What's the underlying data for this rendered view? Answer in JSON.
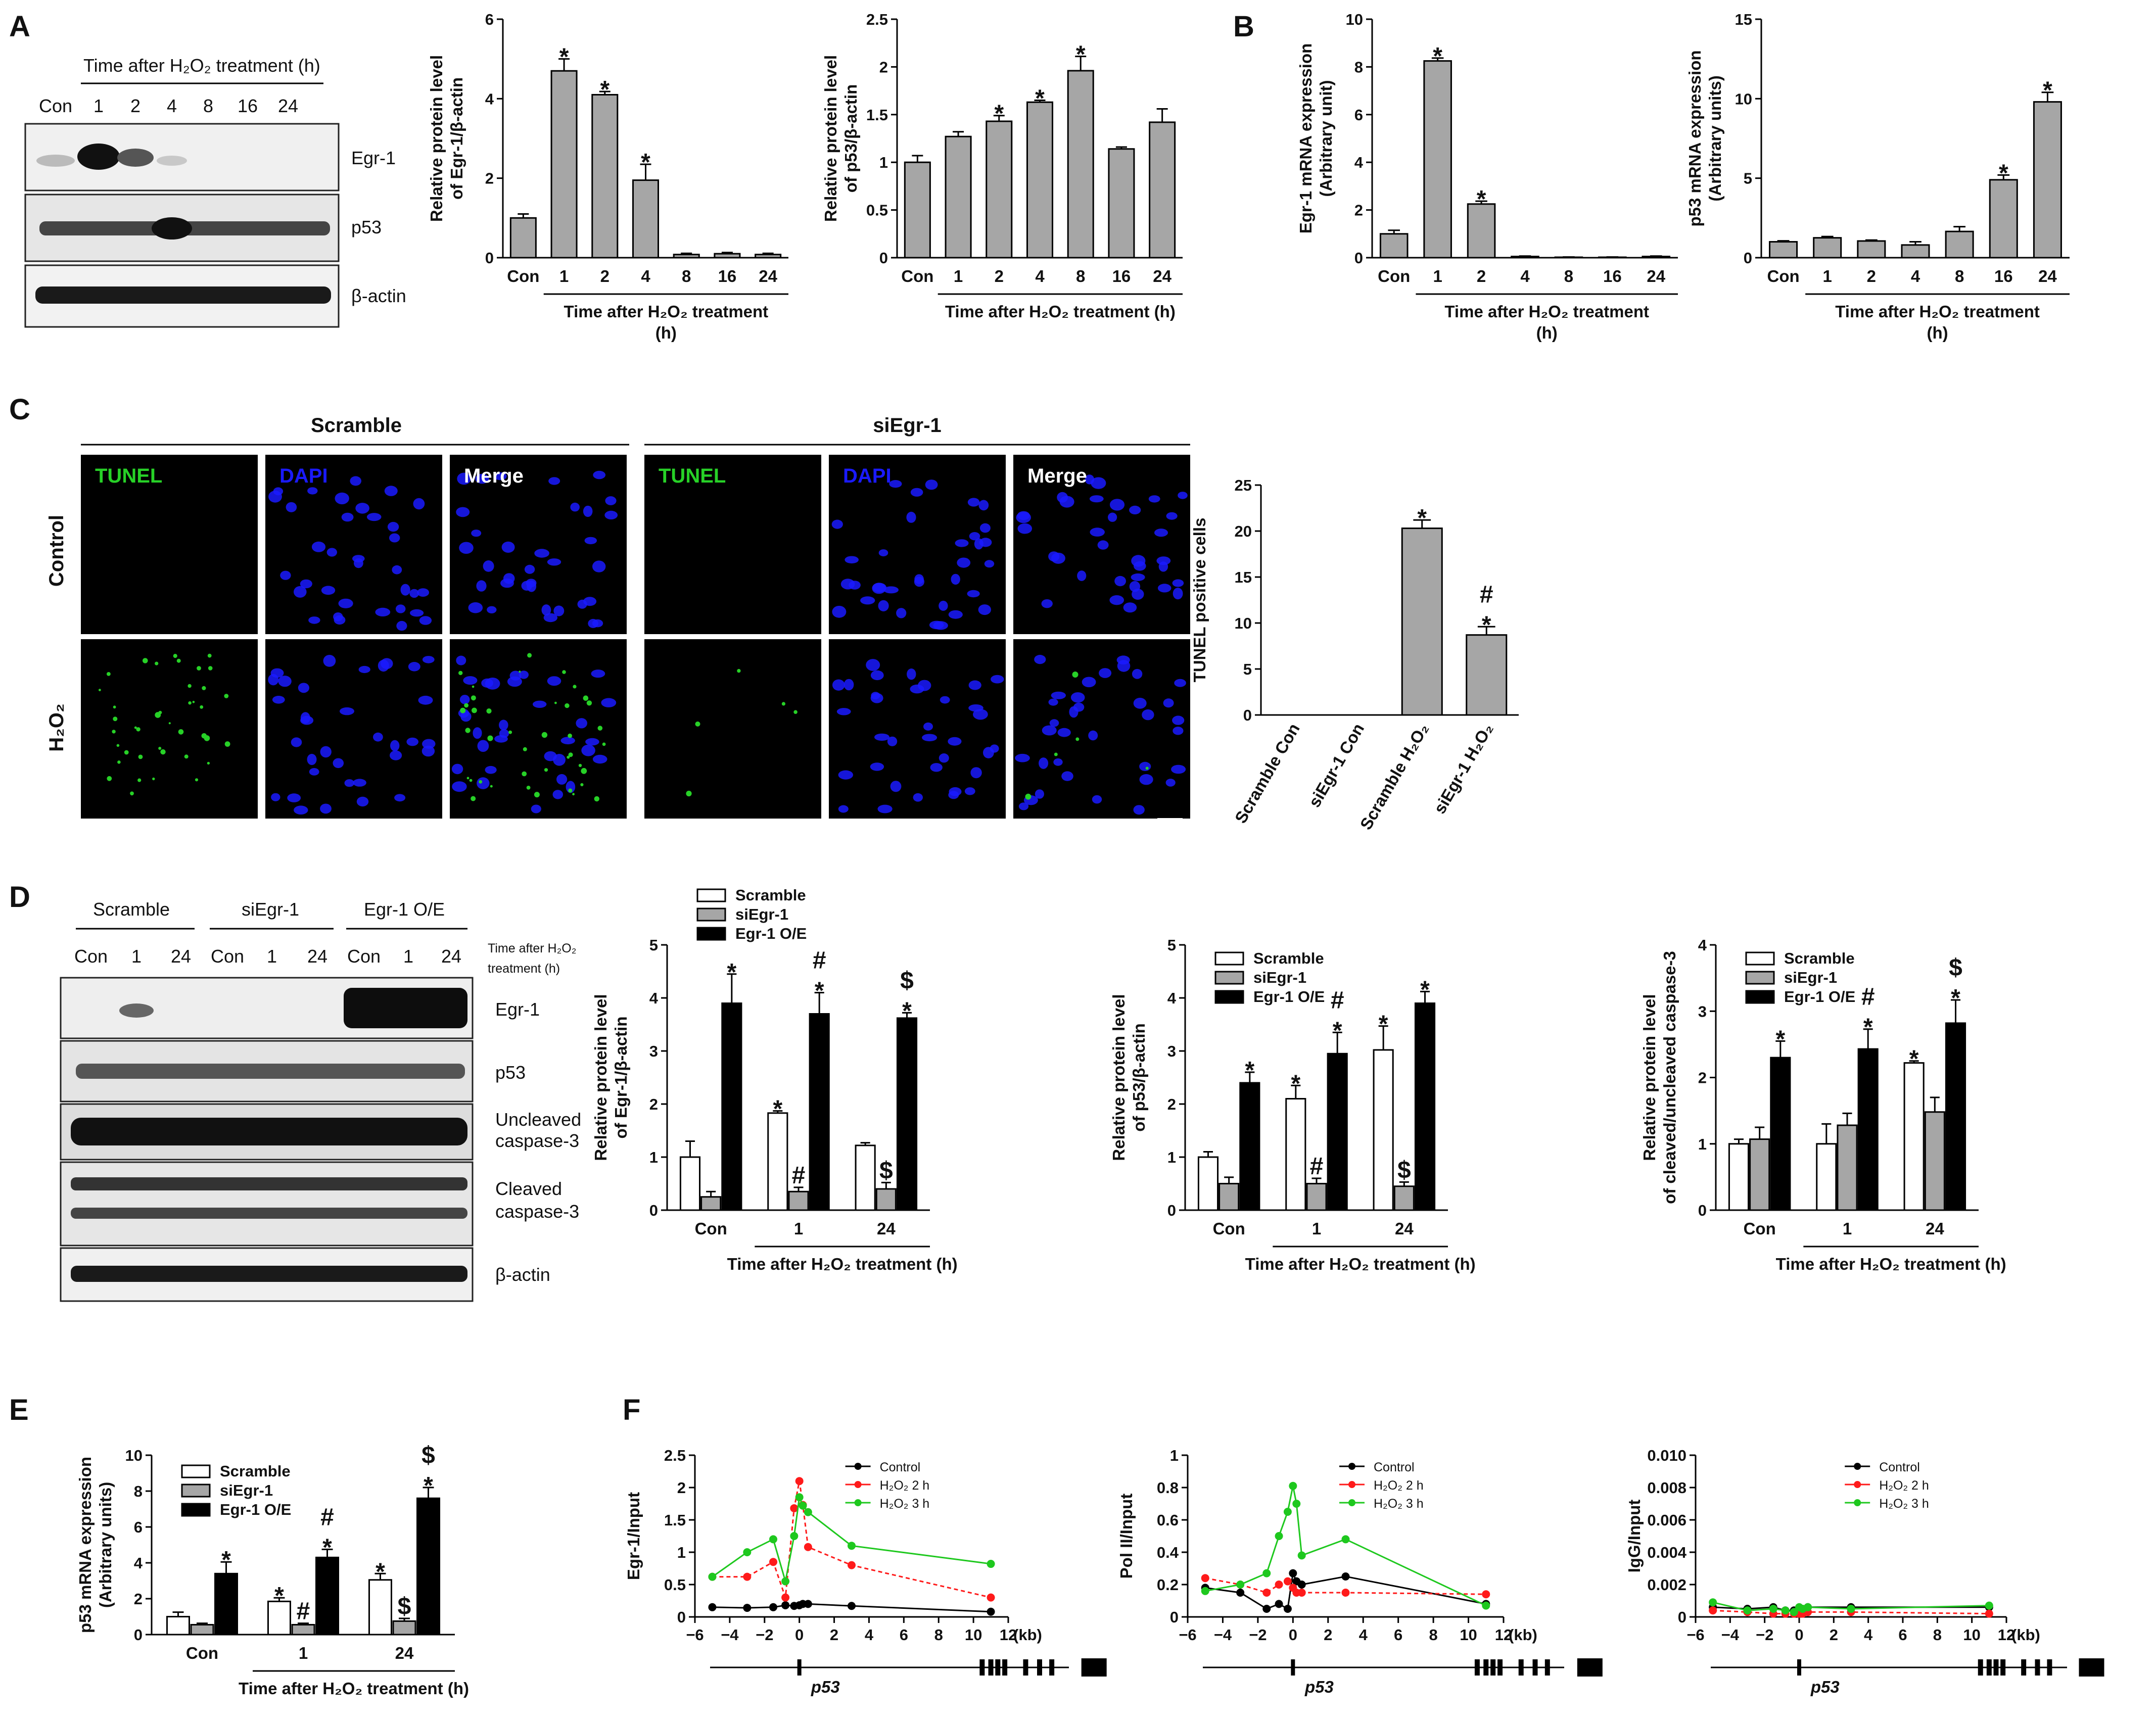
{
  "panels": {
    "A": "A",
    "B": "B",
    "C": "C",
    "D": "D",
    "E": "E",
    "F": "F"
  },
  "colors": {
    "gray_bar": "#a6a6a6",
    "black_bar": "#000000",
    "white_bar": "#ffffff",
    "control": "#000000",
    "h2o2_2h": "#ff1a1a",
    "h2o2_3h": "#1ec81e",
    "tunel": "#27d127",
    "dapi": "#1a1aff"
  },
  "blot_a": {
    "header": "Time after H₂O₂ treatment (h)",
    "lanes": [
      "Con",
      "1",
      "2",
      "4",
      "8",
      "16",
      "24"
    ],
    "bands": [
      "Egr-1",
      "p53",
      "β-actin"
    ]
  },
  "blot_d": {
    "groups": [
      "Scramble",
      "siEgr-1",
      "Egr-1 O/E"
    ],
    "lanes": [
      "Con",
      "1",
      "24",
      "Con",
      "1",
      "24",
      "Con",
      "1",
      "24"
    ],
    "time_label_1": "Time after H₂O₂",
    "time_label_2": "treatment (h)",
    "bands": [
      "Egr-1",
      "p53",
      "Uncleaved",
      "caspase-3",
      "Cleaved",
      "caspase-3",
      "β-actin"
    ]
  },
  "microscopy": {
    "headers": [
      "Scramble",
      "siEgr-1"
    ],
    "rows": [
      "Control",
      "H₂O₂"
    ],
    "channels": [
      "TUNEL",
      "DAPI",
      "Merge",
      "TUNEL",
      "DAPI",
      "Merge"
    ]
  },
  "chart_data": [
    {
      "id": "A1",
      "type": "bar",
      "categories": [
        "Con",
        "1",
        "2",
        "4",
        "8",
        "16",
        "24"
      ],
      "values": [
        1.0,
        4.7,
        4.1,
        1.95,
        0.08,
        0.1,
        0.08
      ],
      "errors": [
        0.1,
        0.3,
        0.08,
        0.4,
        0.03,
        0.03,
        0.03
      ],
      "marks": [
        "",
        "*",
        "*",
        "*",
        "",
        "",
        ""
      ],
      "ylim": [
        0,
        6
      ],
      "yticks": [
        0,
        2,
        4,
        6
      ],
      "ylabel": [
        "Relative protein level",
        "of Egr-1/β-actin"
      ],
      "xlabel": [
        "Time after H₂O₂ treatment",
        "(h)"
      ],
      "bar_color": "#a6a6a6"
    },
    {
      "id": "A2",
      "type": "bar",
      "categories": [
        "Con",
        "1",
        "2",
        "4",
        "8",
        "16",
        "24"
      ],
      "values": [
        1.0,
        1.27,
        1.43,
        1.63,
        1.96,
        1.14,
        1.42
      ],
      "errors": [
        0.07,
        0.05,
        0.06,
        0.02,
        0.15,
        0.02,
        0.14
      ],
      "marks": [
        "",
        "",
        "*",
        "*",
        "*",
        "",
        ""
      ],
      "ylim": [
        0,
        2.5
      ],
      "yticks": [
        0,
        0.5,
        1.0,
        1.5,
        2.0,
        2.5
      ],
      "ylabel": [
        "Relative protein level",
        "of p53/β-actin"
      ],
      "xlabel": [
        "Time after H₂O₂ treatment (h)"
      ],
      "bar_color": "#a6a6a6"
    },
    {
      "id": "B1",
      "type": "bar",
      "categories": [
        "Con",
        "1",
        "2",
        "4",
        "8",
        "16",
        "24"
      ],
      "values": [
        1.0,
        8.25,
        2.25,
        0.05,
        0.02,
        0.02,
        0.05
      ],
      "errors": [
        0.15,
        0.12,
        0.12,
        0.02,
        0.01,
        0.01,
        0.02
      ],
      "marks": [
        "",
        "*",
        "*",
        "",
        "",
        "",
        ""
      ],
      "ylim": [
        0,
        10
      ],
      "yticks": [
        0,
        2,
        4,
        6,
        8,
        10
      ],
      "ylabel": [
        "Egr-1 mRNA expression",
        "(Arbitrary unit)"
      ],
      "xlabel": [
        "Time after H₂O₂ treatment",
        "(h)"
      ],
      "bar_color": "#a6a6a6"
    },
    {
      "id": "B2",
      "type": "bar",
      "categories": [
        "Con",
        "1",
        "2",
        "4",
        "8",
        "16",
        "24"
      ],
      "values": [
        1.0,
        1.25,
        1.05,
        0.8,
        1.65,
        4.9,
        9.8
      ],
      "errors": [
        0.06,
        0.08,
        0.06,
        0.2,
        0.3,
        0.3,
        0.6
      ],
      "marks": [
        "",
        "",
        "",
        "",
        "",
        "*",
        "*"
      ],
      "ylim": [
        0,
        15
      ],
      "yticks": [
        0,
        5,
        10,
        15
      ],
      "ylabel": [
        "p53 mRNA expression",
        "(Arbitrary units)"
      ],
      "xlabel": [
        "Time after H₂O₂ treatment",
        "(h)"
      ],
      "bar_color": "#a6a6a6"
    },
    {
      "id": "C",
      "type": "bar",
      "categories": [
        "Scramble Con",
        "siEgr-1 Con",
        "Scramble H₂O₂",
        "siEgr-1 H₂O₂"
      ],
      "values": [
        0,
        0,
        20.3,
        8.7
      ],
      "errors": [
        0,
        0,
        0.9,
        0.9
      ],
      "marks": [
        "",
        "",
        "*",
        "#\n*"
      ],
      "ylim": [
        0,
        25
      ],
      "yticks": [
        0,
        5,
        10,
        15,
        20,
        25
      ],
      "ylabel": [
        "TUNEL positive cells"
      ],
      "xlabel": [],
      "bar_color": "#a6a6a6"
    },
    {
      "id": "D1",
      "type": "bar",
      "categories": [
        "Con",
        "1",
        "24"
      ],
      "legend": [
        "Scramble",
        "siEgr-1",
        "Egr-1 O/E"
      ],
      "series": [
        {
          "name": "Scramble",
          "values": [
            1.0,
            1.83,
            1.22
          ],
          "errors": [
            0.3,
            0.04,
            0.05
          ],
          "marks": [
            "",
            "*",
            ""
          ]
        },
        {
          "name": "siEgr-1",
          "values": [
            0.25,
            0.35,
            0.4
          ],
          "errors": [
            0.1,
            0.08,
            0.12
          ],
          "marks": [
            "",
            "#",
            "$"
          ]
        },
        {
          "name": "Egr-1 O/E",
          "values": [
            3.9,
            3.7,
            3.62
          ],
          "errors": [
            0.55,
            0.4,
            0.1
          ],
          "marks": [
            "*",
            "#\n*",
            "$\n*"
          ]
        }
      ],
      "ylim": [
        0,
        5
      ],
      "yticks": [
        0,
        1,
        2,
        3,
        4,
        5
      ],
      "ylabel": [
        "Relative protein level",
        "of Egr-1/β-actin"
      ],
      "xlabel": [
        "Time after H₂O₂ treatment (h)"
      ]
    },
    {
      "id": "D2",
      "type": "bar",
      "categories": [
        "Con",
        "1",
        "24"
      ],
      "legend": [
        "Scramble",
        "siEgr-1",
        "Egr-1 O/E"
      ],
      "series": [
        {
          "name": "Scramble",
          "values": [
            1.0,
            2.1,
            3.02
          ],
          "errors": [
            0.1,
            0.25,
            0.45
          ],
          "marks": [
            "",
            "*",
            "*"
          ]
        },
        {
          "name": "siEgr-1",
          "values": [
            0.5,
            0.5,
            0.45
          ],
          "errors": [
            0.12,
            0.1,
            0.08
          ],
          "marks": [
            "",
            "#",
            "$"
          ]
        },
        {
          "name": "Egr-1 O/E",
          "values": [
            2.4,
            2.95,
            3.9
          ],
          "errors": [
            0.2,
            0.4,
            0.22
          ],
          "marks": [
            "*",
            "#\n*",
            "*"
          ]
        }
      ],
      "ylim": [
        0,
        5
      ],
      "yticks": [
        0,
        1,
        2,
        3,
        4,
        5
      ],
      "ylabel": [
        "Relative protein level",
        "of p53/β-actin"
      ],
      "xlabel": [
        "Time after H₂O₂ treatment (h)"
      ]
    },
    {
      "id": "D3",
      "type": "bar",
      "categories": [
        "Con",
        "1",
        "24"
      ],
      "legend": [
        "Scramble",
        "siEgr-1",
        "Egr-1 O/E"
      ],
      "series": [
        {
          "name": "Scramble",
          "values": [
            1.0,
            1.0,
            2.22
          ],
          "errors": [
            0.07,
            0.3,
            0.03
          ],
          "marks": [
            "",
            "",
            "*"
          ]
        },
        {
          "name": "siEgr-1",
          "values": [
            1.07,
            1.28,
            1.48
          ],
          "errors": [
            0.18,
            0.18,
            0.22
          ],
          "marks": [
            "",
            "",
            ""
          ]
        },
        {
          "name": "Egr-1 O/E",
          "values": [
            2.3,
            2.43,
            2.82
          ],
          "errors": [
            0.25,
            0.3,
            0.35
          ],
          "marks": [
            "*",
            "#\n*",
            "$\n*"
          ]
        }
      ],
      "ylim": [
        0,
        4
      ],
      "yticks": [
        0,
        1,
        2,
        3,
        4
      ],
      "ylabel": [
        "Relative protein level",
        "of cleaved/uncleaved caspase-3"
      ],
      "xlabel": [
        "Time after H₂O₂ treatment (h)"
      ]
    },
    {
      "id": "E",
      "type": "bar",
      "categories": [
        "Con",
        "1",
        "24"
      ],
      "legend": [
        "Scramble",
        "siEgr-1",
        "Egr-1 O/E"
      ],
      "series": [
        {
          "name": "Scramble",
          "values": [
            1.0,
            1.85,
            3.05
          ],
          "errors": [
            0.25,
            0.2,
            0.35
          ],
          "marks": [
            "",
            "*",
            "*"
          ]
        },
        {
          "name": "siEgr-1",
          "values": [
            0.55,
            0.55,
            0.75
          ],
          "errors": [
            0.08,
            0.08,
            0.15
          ],
          "marks": [
            "",
            "#",
            "$"
          ]
        },
        {
          "name": "Egr-1 O/E",
          "values": [
            3.4,
            4.3,
            7.6
          ],
          "errors": [
            0.65,
            0.45,
            0.6
          ],
          "marks": [
            "*",
            "#\n*",
            "$\n*"
          ]
        }
      ],
      "ylim": [
        0,
        10
      ],
      "yticks": [
        0,
        2,
        4,
        6,
        8,
        10
      ],
      "ylabel": [
        "p53 mRNA expression",
        "(Arbitrary units)"
      ],
      "xlabel": [
        "Time after H₂O₂ treatment (h)"
      ]
    },
    {
      "id": "F1",
      "type": "line",
      "x": [
        -5,
        -3,
        -1.5,
        -0.8,
        -0.3,
        0,
        0.2,
        0.5,
        3,
        11
      ],
      "xlim": [
        -6,
        12
      ],
      "xticks": [
        -6,
        -4,
        -2,
        0,
        2,
        4,
        6,
        8,
        10,
        12
      ],
      "xunit": "(kb)",
      "ylim": [
        0,
        2.5
      ],
      "yticks": [
        0,
        0.5,
        1.0,
        1.5,
        2.0,
        2.5
      ],
      "ylabel": [
        "Egr-1/Input"
      ],
      "series": [
        {
          "name": "Control",
          "values": [
            0.15,
            0.14,
            0.15,
            0.18,
            0.17,
            0.18,
            0.2,
            0.2,
            0.17,
            0.08
          ]
        },
        {
          "name": "H₂O₂ 2 h",
          "values": [
            0.62,
            0.62,
            0.85,
            0.3,
            1.68,
            2.1,
            1.73,
            1.08,
            0.8,
            0.3
          ]
        },
        {
          "name": "H₂O₂ 3 h",
          "values": [
            0.62,
            1.0,
            1.2,
            0.55,
            1.25,
            1.85,
            1.72,
            1.62,
            1.1,
            0.82
          ]
        }
      ],
      "legend": [
        "Control",
        "H₂O₂ 2 h",
        "H₂O₂ 3 h"
      ],
      "gene": "p53"
    },
    {
      "id": "F2",
      "type": "line",
      "x": [
        -5,
        -3,
        -1.5,
        -0.8,
        -0.3,
        0,
        0.2,
        0.5,
        3,
        11
      ],
      "xlim": [
        -6,
        12
      ],
      "xticks": [
        -6,
        -4,
        -2,
        0,
        2,
        4,
        6,
        8,
        10,
        12
      ],
      "xunit": "(kb)",
      "ylim": [
        0,
        1.0
      ],
      "yticks": [
        0,
        0.2,
        0.4,
        0.6,
        0.8,
        1.0
      ],
      "ylabel": [
        "Pol II/Input"
      ],
      "series": [
        {
          "name": "Control",
          "values": [
            0.18,
            0.15,
            0.05,
            0.08,
            0.05,
            0.27,
            0.22,
            0.2,
            0.25,
            0.08
          ]
        },
        {
          "name": "H₂O₂ 2 h",
          "values": [
            0.24,
            0.2,
            0.15,
            0.2,
            0.22,
            0.18,
            0.15,
            0.15,
            0.15,
            0.14
          ]
        },
        {
          "name": "H₂O₂ 3 h",
          "values": [
            0.16,
            0.2,
            0.27,
            0.5,
            0.65,
            0.81,
            0.7,
            0.38,
            0.48,
            0.07
          ]
        }
      ],
      "legend": [
        "Control",
        "H₂O₂ 2 h",
        "H₂O₂ 3 h"
      ],
      "gene": "p53"
    },
    {
      "id": "F3",
      "type": "line",
      "x": [
        -5,
        -3,
        -1.5,
        -0.8,
        -0.3,
        0,
        0.2,
        0.5,
        3,
        11
      ],
      "xlim": [
        -6,
        12
      ],
      "xticks": [
        -6,
        -4,
        -2,
        0,
        2,
        4,
        6,
        8,
        10,
        12
      ],
      "xunit": "(kb)",
      "ylim": [
        0,
        0.01
      ],
      "yticks": [
        0,
        0.002,
        0.004,
        0.006,
        0.008,
        0.01
      ],
      "ylabel": [
        "IgG/Input"
      ],
      "series": [
        {
          "name": "Control",
          "values": [
            0.0006,
            0.0005,
            0.0006,
            0.0004,
            0.0004,
            0.0003,
            0.0003,
            0.0006,
            0.0006,
            0.0006
          ]
        },
        {
          "name": "H₂O₂ 2 h",
          "values": [
            0.0004,
            0.0003,
            0.0002,
            0.0002,
            0.0002,
            0.0002,
            0.0002,
            0.0003,
            0.0003,
            0.0002
          ]
        },
        {
          "name": "H₂O₂ 3 h",
          "values": [
            0.0009,
            0.0004,
            0.0005,
            0.0004,
            0.0003,
            0.0006,
            0.0005,
            0.0006,
            0.0005,
            0.0007
          ]
        }
      ],
      "legend": [
        "Control",
        "H₂O₂ 2 h",
        "H₂O₂ 3 h"
      ],
      "gene": "p53"
    }
  ]
}
